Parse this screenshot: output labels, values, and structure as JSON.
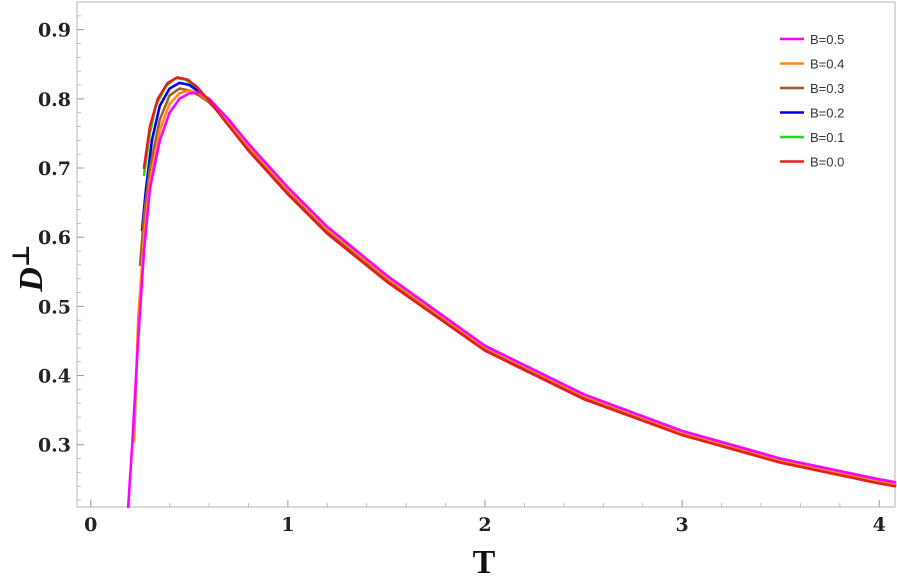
{
  "chart_data": {
    "type": "line",
    "title": "",
    "xlabel": "T",
    "ylabel": "D",
    "ylabel_superscript": "⊥",
    "xlim": [
      -0.07,
      4.08
    ],
    "ylim": [
      0.21,
      0.94
    ],
    "x_ticks": [
      0,
      1,
      2,
      3,
      4
    ],
    "y_ticks": [
      0.3,
      0.4,
      0.5,
      0.6,
      0.7,
      0.8,
      0.9
    ],
    "x_tick_labels": [
      "0",
      "1",
      "2",
      "3",
      "4"
    ],
    "y_tick_labels": [
      "0.3",
      "0.4",
      "0.5",
      "0.6",
      "0.7",
      "0.8",
      "0.9"
    ],
    "grid": false,
    "legend_position": "top-right",
    "series": [
      {
        "name": "B=0.5",
        "color": "#ff00ff",
        "points": [
          [
            0.19,
            0.21
          ],
          [
            0.21,
            0.3
          ],
          [
            0.24,
            0.45
          ],
          [
            0.27,
            0.58
          ],
          [
            0.3,
            0.67
          ],
          [
            0.35,
            0.74
          ],
          [
            0.4,
            0.78
          ],
          [
            0.45,
            0.8
          ],
          [
            0.5,
            0.808
          ],
          [
            0.55,
            0.809
          ],
          [
            0.6,
            0.8
          ],
          [
            0.7,
            0.77
          ],
          [
            0.8,
            0.735
          ],
          [
            1.0,
            0.672
          ],
          [
            1.2,
            0.615
          ],
          [
            1.5,
            0.545
          ],
          [
            2.0,
            0.443
          ],
          [
            2.5,
            0.373
          ],
          [
            3.0,
            0.32
          ],
          [
            3.5,
            0.28
          ],
          [
            4.0,
            0.25
          ],
          [
            4.08,
            0.246
          ]
        ]
      },
      {
        "name": "B=0.4",
        "color": "#ff8c1a",
        "points": [
          [
            0.22,
            0.305
          ],
          [
            0.24,
            0.48
          ],
          [
            0.27,
            0.6
          ],
          [
            0.3,
            0.68
          ],
          [
            0.35,
            0.755
          ],
          [
            0.4,
            0.793
          ],
          [
            0.45,
            0.808
          ],
          [
            0.5,
            0.812
          ],
          [
            0.55,
            0.808
          ],
          [
            0.6,
            0.797
          ],
          [
            0.7,
            0.767
          ],
          [
            0.8,
            0.732
          ],
          [
            1.0,
            0.669
          ],
          [
            1.2,
            0.612
          ],
          [
            1.5,
            0.542
          ],
          [
            2.0,
            0.441
          ],
          [
            2.5,
            0.371
          ],
          [
            3.0,
            0.318
          ],
          [
            3.5,
            0.278
          ],
          [
            4.0,
            0.248
          ],
          [
            4.08,
            0.244
          ]
        ]
      },
      {
        "name": "B=0.3",
        "color": "#a0622d",
        "points": [
          [
            0.25,
            0.56
          ],
          [
            0.27,
            0.63
          ],
          [
            0.3,
            0.7
          ],
          [
            0.35,
            0.77
          ],
          [
            0.4,
            0.805
          ],
          [
            0.45,
            0.815
          ],
          [
            0.5,
            0.812
          ],
          [
            0.55,
            0.805
          ],
          [
            0.6,
            0.795
          ],
          [
            0.7,
            0.765
          ],
          [
            0.8,
            0.73
          ],
          [
            1.0,
            0.667
          ],
          [
            1.2,
            0.61
          ],
          [
            1.5,
            0.54
          ],
          [
            2.0,
            0.44
          ],
          [
            2.5,
            0.37
          ],
          [
            3.0,
            0.317
          ],
          [
            3.5,
            0.277
          ],
          [
            4.0,
            0.247
          ],
          [
            4.08,
            0.243
          ]
        ]
      },
      {
        "name": "B=0.2",
        "color": "#0000e6",
        "points": [
          [
            0.26,
            0.61
          ],
          [
            0.28,
            0.67
          ],
          [
            0.31,
            0.74
          ],
          [
            0.35,
            0.79
          ],
          [
            0.4,
            0.815
          ],
          [
            0.45,
            0.823
          ],
          [
            0.5,
            0.82
          ],
          [
            0.55,
            0.81
          ],
          [
            0.6,
            0.797
          ],
          [
            0.7,
            0.763
          ],
          [
            0.8,
            0.727
          ],
          [
            1.0,
            0.664
          ],
          [
            1.2,
            0.607
          ],
          [
            1.5,
            0.538
          ],
          [
            2.0,
            0.438
          ],
          [
            2.5,
            0.368
          ],
          [
            3.0,
            0.316
          ],
          [
            3.5,
            0.276
          ],
          [
            4.0,
            0.246
          ],
          [
            4.08,
            0.242
          ]
        ]
      },
      {
        "name": "B=0.1",
        "color": "#1ed91e",
        "points": [
          [
            0.27,
            0.69
          ],
          [
            0.3,
            0.75
          ],
          [
            0.33,
            0.79
          ],
          [
            0.38,
            0.818
          ],
          [
            0.43,
            0.83
          ],
          [
            0.48,
            0.828
          ],
          [
            0.53,
            0.818
          ],
          [
            0.6,
            0.797
          ],
          [
            0.7,
            0.762
          ],
          [
            0.8,
            0.726
          ],
          [
            1.0,
            0.663
          ],
          [
            1.2,
            0.606
          ],
          [
            1.5,
            0.537
          ],
          [
            2.0,
            0.437
          ],
          [
            2.5,
            0.367
          ],
          [
            3.0,
            0.315
          ],
          [
            3.5,
            0.275
          ],
          [
            4.0,
            0.245
          ],
          [
            4.08,
            0.241
          ]
        ]
      },
      {
        "name": "B=0.0",
        "color": "#e32020",
        "points": [
          [
            0.27,
            0.7
          ],
          [
            0.3,
            0.76
          ],
          [
            0.34,
            0.8
          ],
          [
            0.39,
            0.823
          ],
          [
            0.44,
            0.831
          ],
          [
            0.49,
            0.828
          ],
          [
            0.54,
            0.817
          ],
          [
            0.6,
            0.797
          ],
          [
            0.7,
            0.761
          ],
          [
            0.8,
            0.725
          ],
          [
            1.0,
            0.662
          ],
          [
            1.2,
            0.605
          ],
          [
            1.5,
            0.536
          ],
          [
            2.0,
            0.436
          ],
          [
            2.5,
            0.366
          ],
          [
            3.0,
            0.314
          ],
          [
            3.5,
            0.274
          ],
          [
            4.0,
            0.244
          ],
          [
            4.08,
            0.24
          ]
        ]
      }
    ]
  }
}
